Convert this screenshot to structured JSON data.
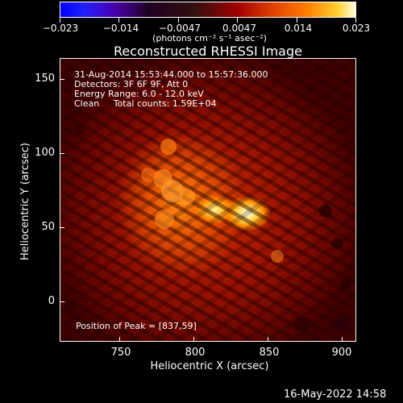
{
  "colorbar": {
    "ticks": [
      "−0.023",
      "−0.014",
      "−0.0047",
      "0.0047",
      "0.014",
      "0.023"
    ],
    "units_label": "(photons cm⁻² s⁻¹ asec⁻²)"
  },
  "title": "Reconstructed RHESSI Image",
  "info": {
    "line1": "31-Aug-2014 15:53:44.000 to 15:57:36.000",
    "line2": "Detectors: 3F 6F 9F, Att 0",
    "line3": "Energy Range: 6.0 - 12.0 keV",
    "line4": "Clean     Total counts: 1.59E+04"
  },
  "peak": "Position of Peak = [837,59]",
  "axes": {
    "x_label": "Heliocentric X (arcsec)",
    "y_label": "Heliocentric Y (arcsec)",
    "x_ticks": [
      "750",
      "800",
      "850",
      "900"
    ],
    "y_ticks": [
      "150",
      "100",
      "50",
      "0"
    ]
  },
  "footer_date": "16-May-2022 14:58"
}
